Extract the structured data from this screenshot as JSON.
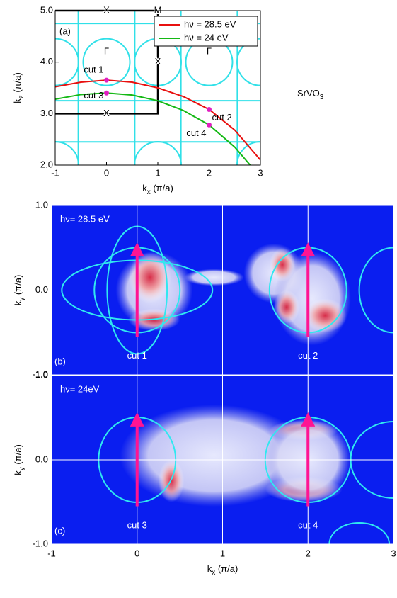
{
  "chart_data": [
    {
      "type": "line",
      "title": "(a)",
      "xlabel": {
        "main": "k",
        "sub": "x",
        "rest": " (π/a)"
      },
      "ylabel": {
        "main": "k",
        "sub": "z",
        "rest": " (π/a)"
      },
      "xlim": [
        -1,
        3
      ],
      "xticks": [
        -1,
        0,
        1,
        2,
        3
      ],
      "ylim": [
        2,
        5
      ],
      "yticks": [
        {
          "value": 2,
          "label": "2.0"
        },
        {
          "value": 3,
          "label": "3.0"
        },
        {
          "value": 4,
          "label": "4.0"
        },
        {
          "value": 5,
          "label": "5.0"
        }
      ],
      "legend": "upper right",
      "series": [
        {
          "name": "hν = 28.5 eV",
          "color": "#e8100f",
          "x": [
            -1,
            -0.5,
            0,
            0.5,
            1,
            1.5,
            2,
            2.5,
            3
          ],
          "values": [
            3.52,
            3.61,
            3.65,
            3.61,
            3.5,
            3.33,
            3.08,
            2.68,
            2.1
          ]
        },
        {
          "name": "hν = 24 eV",
          "color": "#14b814",
          "x": [
            -1,
            -0.5,
            0,
            0.5,
            1,
            1.5,
            2,
            2.5,
            2.8
          ],
          "values": [
            3.28,
            3.37,
            3.4,
            3.36,
            3.25,
            3.06,
            2.78,
            2.35,
            2.0
          ]
        }
      ],
      "points": [
        {
          "label": "cut 1",
          "x": 0,
          "y": 3.65
        },
        {
          "label": "cut 3",
          "x": 0,
          "y": 3.4
        },
        {
          "label": "cut 2",
          "x": 2,
          "y": 3.08
        },
        {
          "label": "cut 4",
          "x": 2,
          "y": 2.78
        }
      ],
      "symmetry_labels": [
        {
          "label": "X",
          "x": 0,
          "y": 5
        },
        {
          "label": "M",
          "x": 1,
          "y": 5
        },
        {
          "label": "Γ",
          "x": 0,
          "y": 4.2
        },
        {
          "label": "Γ",
          "x": 2,
          "y": 4.2
        },
        {
          "label": "X",
          "x": 1,
          "y": 4
        },
        {
          "label": "X",
          "x": 0,
          "y": 3
        }
      ],
      "material": {
        "main": "SrVO",
        "sub": "3"
      }
    },
    {
      "type": "heatmap",
      "title": "(b)",
      "annotation": "hν= 28.5 eV",
      "ylabel": {
        "main": "k",
        "sub": "y",
        "rest": " (π/a)"
      },
      "xlim": [
        -1,
        3
      ],
      "xticks": [
        -1,
        0,
        1,
        2,
        3
      ],
      "show_xtick_labels": false,
      "ylim": [
        -1,
        1
      ],
      "yticks": [
        {
          "value": -1,
          "label": "-1.0"
        },
        {
          "value": 0,
          "label": "0.0"
        },
        {
          "value": 1,
          "label": "1.0"
        }
      ],
      "cuts": [
        {
          "label": "cut 1",
          "x": 0
        },
        {
          "label": "cut 2",
          "x": 2
        }
      ]
    },
    {
      "type": "heatmap",
      "title": "(c)",
      "annotation": "hν= 24eV",
      "xlabel": {
        "main": "k",
        "sub": "x",
        "rest": " (π/a)"
      },
      "ylabel": {
        "main": "k",
        "sub": "y",
        "rest": " (π/a)"
      },
      "xlim": [
        -1,
        3
      ],
      "xticks": [
        -1,
        0,
        1,
        2,
        3
      ],
      "show_xtick_labels": true,
      "ylim": [
        -1,
        1
      ],
      "yticks": [
        {
          "value": -1,
          "label": "-1.0"
        },
        {
          "value": 0,
          "label": "0.0"
        },
        {
          "value": 1,
          "label": "1.0"
        }
      ],
      "cuts": [
        {
          "label": "cut 3",
          "x": 0
        },
        {
          "label": "cut 4",
          "x": 2
        }
      ]
    }
  ]
}
